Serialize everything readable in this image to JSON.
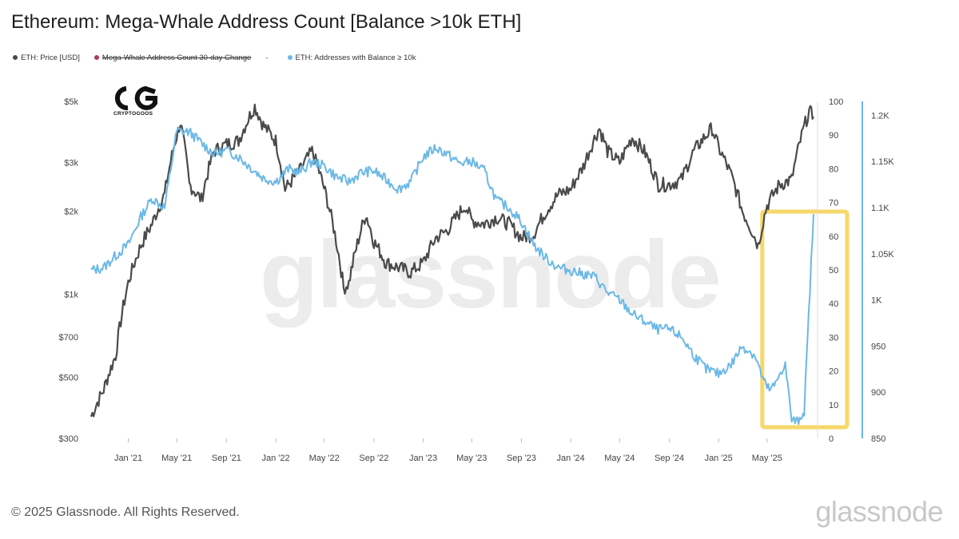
{
  "chart_data": {
    "title": "Ethereum: Mega-Whale Address Count [Balance >10k ETH]",
    "legend": [
      {
        "label": "ETH: Price [USD]",
        "color": "#4a4a4a",
        "strikethrough": false
      },
      {
        "label": "Mega-Whale Address Count 30-day Change",
        "color": "#b0385a",
        "strikethrough": true
      },
      {
        "label": "ETH: Addresses with Balance ≥ 10k",
        "color": "#6bb8e6",
        "strikethrough": false
      }
    ],
    "legend_separator": "-",
    "type": "line",
    "x_ticks": [
      "Jan '21",
      "May '21",
      "Sep '21",
      "Jan '22",
      "May '22",
      "Sep '22",
      "Jan '23",
      "May '23",
      "Sep '23",
      "Jan '24",
      "May '24",
      "Sep '24",
      "Jan '25",
      "May '25"
    ],
    "y_left": {
      "scale": "log",
      "ticks": [
        "$300",
        "$500",
        "$700",
        "$1k",
        "$2k",
        "$3k",
        "$5k"
      ],
      "tick_values": [
        300,
        500,
        700,
        1000,
        2000,
        3000,
        5000
      ]
    },
    "y_mid": {
      "ticks": [
        "0",
        "10",
        "20",
        "30",
        "40",
        "50",
        "60",
        "70",
        "80",
        "90",
        "100"
      ],
      "range": [
        0,
        100
      ]
    },
    "y_right": {
      "ticks": [
        "850",
        "900",
        "950",
        "1K",
        "1.05K",
        "1.1K",
        "1.15K",
        "1.2K"
      ],
      "tick_values": [
        850,
        900,
        950,
        1000,
        1050,
        1100,
        1150,
        1200
      ],
      "range": [
        850,
        1215
      ]
    },
    "series": [
      {
        "name": "ETH: Price [USD]",
        "axis": "left",
        "color": "#4a4a4a",
        "x": [
          "2020-10-01",
          "2020-11-01",
          "2020-12-01",
          "2021-01-01",
          "2021-02-01",
          "2021-03-01",
          "2021-04-01",
          "2021-05-10",
          "2021-06-01",
          "2021-07-01",
          "2021-08-01",
          "2021-09-01",
          "2021-10-01",
          "2021-11-10",
          "2021-12-01",
          "2022-01-01",
          "2022-01-24",
          "2022-03-01",
          "2022-04-01",
          "2022-05-15",
          "2022-06-18",
          "2022-07-01",
          "2022-08-12",
          "2022-09-01",
          "2022-10-01",
          "2022-11-01",
          "2022-12-01",
          "2023-01-01",
          "2023-02-01",
          "2023-03-01",
          "2023-04-15",
          "2023-05-01",
          "2023-06-01",
          "2023-07-01",
          "2023-08-01",
          "2023-09-01",
          "2023-10-01",
          "2023-11-01",
          "2023-12-01",
          "2024-01-01",
          "2024-02-01",
          "2024-03-12",
          "2024-04-01",
          "2024-05-01",
          "2024-06-01",
          "2024-07-01",
          "2024-08-05",
          "2024-09-01",
          "2024-10-01",
          "2024-11-01",
          "2024-12-16",
          "2025-01-01",
          "2025-02-01",
          "2025-03-01",
          "2025-04-09",
          "2025-05-01",
          "2025-06-01",
          "2025-07-01",
          "2025-08-13",
          "2025-08-24"
        ],
        "y": [
          360,
          450,
          600,
          1100,
          1500,
          1800,
          2300,
          4200,
          2500,
          2200,
          3300,
          3500,
          3600,
          4800,
          4100,
          3600,
          2400,
          2800,
          3300,
          2000,
          1050,
          1100,
          1950,
          1550,
          1300,
          1250,
          1200,
          1300,
          1600,
          1700,
          2100,
          1850,
          1800,
          1900,
          1800,
          1600,
          1650,
          2000,
          2300,
          2400,
          2900,
          4000,
          3300,
          3000,
          3700,
          3300,
          2500,
          2500,
          2600,
          3300,
          4000,
          3400,
          2700,
          2000,
          1500,
          2100,
          2500,
          2600,
          4600,
          4400
        ]
      },
      {
        "name": "ETH: Addresses with Balance ≥ 10k",
        "axis": "right",
        "color": "#6bb8e6",
        "x": [
          "2020-10-01",
          "2020-11-01",
          "2020-12-01",
          "2021-01-01",
          "2021-02-01",
          "2021-03-01",
          "2021-04-01",
          "2021-05-01",
          "2021-06-01",
          "2021-07-01",
          "2021-08-01",
          "2021-09-01",
          "2021-10-01",
          "2021-11-01",
          "2021-12-01",
          "2022-01-01",
          "2022-02-01",
          "2022-03-01",
          "2022-04-01",
          "2022-05-01",
          "2022-06-01",
          "2022-07-01",
          "2022-08-01",
          "2022-09-01",
          "2022-10-01",
          "2022-11-01",
          "2022-12-01",
          "2023-01-01",
          "2023-02-01",
          "2023-03-01",
          "2023-04-01",
          "2023-05-01",
          "2023-06-01",
          "2023-07-01",
          "2023-08-01",
          "2023-09-01",
          "2023-10-01",
          "2023-11-01",
          "2023-12-01",
          "2024-01-01",
          "2024-02-01",
          "2024-03-01",
          "2024-04-01",
          "2024-05-01",
          "2024-06-01",
          "2024-07-01",
          "2024-08-01",
          "2024-09-01",
          "2024-10-01",
          "2024-11-01",
          "2024-12-01",
          "2025-01-01",
          "2025-02-01",
          "2025-03-01",
          "2025-04-01",
          "2025-04-20",
          "2025-05-01",
          "2025-05-10",
          "2025-05-25",
          "2025-06-01",
          "2025-06-15",
          "2025-07-01",
          "2025-07-15",
          "2025-08-01",
          "2025-08-24"
        ],
        "y": [
          1032,
          1035,
          1048,
          1060,
          1090,
          1110,
          1100,
          1183,
          1182,
          1170,
          1158,
          1162,
          1155,
          1143,
          1132,
          1128,
          1142,
          1138,
          1150,
          1145,
          1133,
          1128,
          1138,
          1140,
          1130,
          1120,
          1128,
          1155,
          1165,
          1158,
          1148,
          1150,
          1140,
          1108,
          1100,
          1085,
          1060,
          1045,
          1035,
          1032,
          1028,
          1025,
          1008,
          1000,
          985,
          977,
          968,
          968,
          960,
          940,
          925,
          920,
          930,
          950,
          940,
          915,
          905,
          903,
          910,
          920,
          930,
          870,
          868,
          880,
          1093
        ]
      }
    ],
    "highlight": {
      "x_from": "2025-05-01",
      "x_to": "2025-08-28",
      "color": "#f6d86a"
    }
  },
  "footer": {
    "copyright": "© 2025 Glassnode. All Rights Reserved.",
    "brand": "glassnode"
  },
  "watermark": "glassnode",
  "logo": {
    "text": "CRYPTOGOOS"
  }
}
